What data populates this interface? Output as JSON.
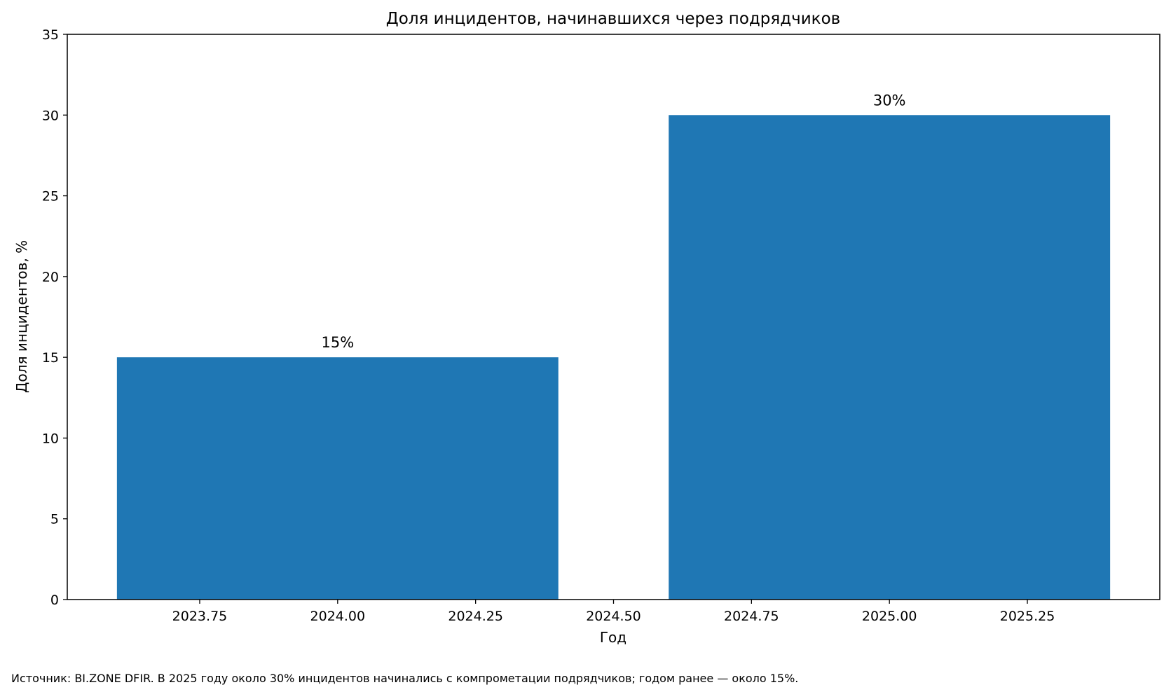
{
  "chart_data": {
    "type": "bar",
    "title": "Доля инцидентов, начинавшихся через подрядчиков",
    "xlabel": "Год",
    "ylabel": "Доля инцидентов, %",
    "x": [
      2024,
      2025
    ],
    "values": [
      15,
      30
    ],
    "bar_width": 0.8,
    "data_labels": [
      "15%",
      "30%"
    ],
    "xlim": [
      2023.51,
      2025.49
    ],
    "ylim": [
      0,
      35
    ],
    "xticks": [
      2023.75,
      2024.0,
      2024.25,
      2024.5,
      2024.75,
      2025.0,
      2025.25
    ],
    "xtick_labels": [
      "2023.75",
      "2024.00",
      "2024.25",
      "2024.50",
      "2024.75",
      "2025.00",
      "2025.25"
    ],
    "yticks": [
      0,
      5,
      10,
      15,
      20,
      25,
      30,
      35
    ],
    "ytick_labels": [
      "0",
      "5",
      "10",
      "15",
      "20",
      "25",
      "30",
      "35"
    ],
    "grid": false,
    "bar_color": "#1f77b4"
  },
  "footnote": "Источник: BI.ZONE DFIR. В 2025 году около 30% инцидентов начинались с компрометации подрядчиков; годом ранее — около 15%."
}
